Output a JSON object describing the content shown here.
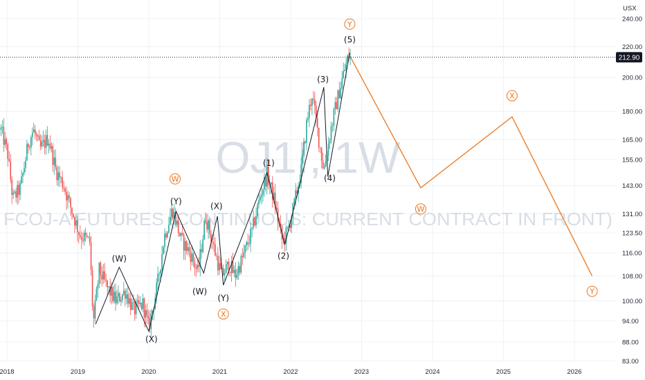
{
  "chart_data": {
    "type": "candlestick",
    "symbol_watermark": "OJ1!, 1W",
    "description_watermark": "FCOJ-A FUTURES (CONTINUOUS: CURRENT CONTRACT IN FRONT)",
    "currency": "USX",
    "y_scale": "log",
    "ylim": [
      82,
      250
    ],
    "y_ticks": [
      "240.00",
      "220.00",
      "200.00",
      "180.00",
      "165.00",
      "155.00",
      "143.00",
      "131.00",
      "123.50",
      "116.00",
      "108.00",
      "100.00",
      "94.00",
      "88.00",
      "83.00"
    ],
    "last_price": "212.90",
    "x_ticks": [
      "2018",
      "2019",
      "2020",
      "2021",
      "2022",
      "2023",
      "2024",
      "2025",
      "2026"
    ],
    "price_path": [
      [
        "2017-12-01",
        170
      ],
      [
        "2018-01-05",
        158
      ],
      [
        "2018-02-01",
        137
      ],
      [
        "2018-03-10",
        142
      ],
      [
        "2018-04-20",
        163
      ],
      [
        "2018-05-15",
        170
      ],
      [
        "2018-06-20",
        160
      ],
      [
        "2018-08-01",
        166
      ],
      [
        "2018-09-10",
        150
      ],
      [
        "2018-10-20",
        143
      ],
      [
        "2018-12-01",
        132
      ],
      [
        "2019-01-10",
        123
      ],
      [
        "2019-03-01",
        120
      ],
      [
        "2019-03-20",
        93
      ],
      [
        "2019-04-20",
        110
      ],
      [
        "2019-06-01",
        104
      ],
      [
        "2019-07-15",
        100
      ],
      [
        "2019-09-01",
        103
      ],
      [
        "2019-10-15",
        97
      ],
      [
        "2019-12-01",
        99
      ],
      [
        "2020-01-01",
        92
      ],
      [
        "2020-02-15",
        105
      ],
      [
        "2020-03-20",
        122
      ],
      [
        "2020-05-01",
        133
      ],
      [
        "2020-06-15",
        121
      ],
      [
        "2020-08-01",
        116
      ],
      [
        "2020-09-10",
        109
      ],
      [
        "2020-10-20",
        130
      ],
      [
        "2020-12-01",
        118
      ],
      [
        "2021-01-10",
        108
      ],
      [
        "2021-02-20",
        112
      ],
      [
        "2021-03-20",
        108
      ],
      [
        "2021-05-01",
        115
      ],
      [
        "2021-06-15",
        124
      ],
      [
        "2021-08-01",
        140
      ],
      [
        "2021-09-01",
        148
      ],
      [
        "2021-10-10",
        136
      ],
      [
        "2021-11-20",
        120
      ],
      [
        "2021-12-20",
        125
      ],
      [
        "2022-01-20",
        135
      ],
      [
        "2022-02-25",
        150
      ],
      [
        "2022-03-25",
        175
      ],
      [
        "2022-04-20",
        190
      ],
      [
        "2022-05-20",
        168
      ],
      [
        "2022-06-20",
        150
      ],
      [
        "2022-07-25",
        170
      ],
      [
        "2022-08-25",
        185
      ],
      [
        "2022-09-25",
        200
      ],
      [
        "2022-10-25",
        214
      ],
      [
        "2022-11-05",
        212.9
      ]
    ],
    "wave_lines": [
      [
        [
          "2019-04-01",
          93
        ],
        [
          "2019-08-01",
          111
        ],
        [
          "2020-01-01",
          91
        ],
        [
          "2020-05-20",
          132
        ],
        [
          "2020-10-10",
          109
        ],
        [
          "2020-12-20",
          130
        ],
        [
          "2021-01-20",
          105
        ],
        [
          "2021-09-01",
          149
        ],
        [
          "2021-12-01",
          119
        ],
        [
          "2022-06-20",
          194
        ],
        [
          "2022-07-10",
          147
        ],
        [
          "2022-11-01",
          216
        ]
      ]
    ],
    "forecast_line": [
      [
        "2022-11-05",
        213
      ],
      [
        "2023-11-01",
        142
      ],
      [
        "2025-02-15",
        177
      ],
      [
        "2026-04-01",
        108
      ]
    ],
    "wave_labels": [
      {
        "text": "(W)",
        "date": "2019-08-01",
        "price": 113
      },
      {
        "text": "(X)",
        "date": "2020-01-15",
        "price": 88
      },
      {
        "text": "(Y)",
        "date": "2020-05-20",
        "price": 135
      },
      {
        "text": "(W)",
        "date": "2020-09-20",
        "price": 102
      },
      {
        "text": "(X)",
        "date": "2020-12-15",
        "price": 133
      },
      {
        "text": "(Y)",
        "date": "2021-01-20",
        "price": 100
      },
      {
        "text": "(1)",
        "date": "2021-09-10",
        "price": 152
      },
      {
        "text": "(2)",
        "date": "2021-11-25",
        "price": 114
      },
      {
        "text": "(3)",
        "date": "2022-06-15",
        "price": 197
      },
      {
        "text": "(4)",
        "date": "2022-07-20",
        "price": 145
      },
      {
        "text": "(5)",
        "date": "2022-11-01",
        "price": 223
      }
    ],
    "circle_labels": [
      {
        "text": "W",
        "date": "2020-05-15",
        "price": 146
      },
      {
        "text": "X",
        "date": "2021-01-20",
        "price": 96
      },
      {
        "text": "Y",
        "date": "2022-11-01",
        "price": 236
      },
      {
        "text": "W",
        "date": "2023-11-01",
        "price": 133
      },
      {
        "text": "X",
        "date": "2025-02-15",
        "price": 189
      },
      {
        "text": "Y",
        "date": "2026-04-01",
        "price": 103
      }
    ],
    "colors": {
      "up": "#26a69a",
      "down": "#ef5350",
      "wave": "#131722",
      "forecast": "#e8761f",
      "price_tag": "#131722",
      "grid": "#eef0f4"
    }
  }
}
